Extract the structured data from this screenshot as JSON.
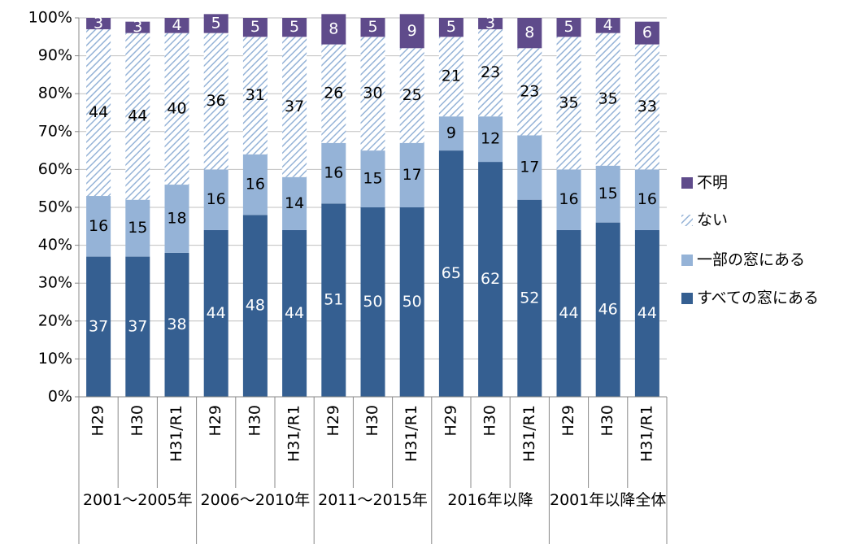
{
  "chart_data": {
    "type": "stacked_bar",
    "groups": [
      "2001〜2005年",
      "2006〜2010年",
      "2011〜2015年",
      "2016年以降",
      "2001年以降全体"
    ],
    "categories": [
      "H29",
      "H30",
      "H31/R1",
      "H29",
      "H30",
      "H31/R1",
      "H29",
      "H30",
      "H31/R1",
      "H29",
      "H30",
      "H31/R1",
      "H29",
      "H30",
      "H31/R1"
    ],
    "series": [
      {
        "name": "すべての窓にある",
        "color": "#355f91",
        "label_color": "#ffffff",
        "values": [
          37,
          37,
          38,
          44,
          48,
          44,
          51,
          50,
          50,
          65,
          62,
          52,
          44,
          46,
          44
        ]
      },
      {
        "name": "一部の窓にある",
        "color": "#95b3d7",
        "label_color": "#000000",
        "values": [
          16,
          15,
          18,
          16,
          16,
          14,
          16,
          15,
          17,
          9,
          12,
          17,
          16,
          15,
          16
        ]
      },
      {
        "name": "ない",
        "color": "#95b3d7",
        "hatch": true,
        "label_color": "#000000",
        "values": [
          44,
          44,
          40,
          36,
          31,
          37,
          26,
          30,
          25,
          21,
          23,
          23,
          35,
          35,
          33
        ]
      },
      {
        "name": "不明",
        "color": "#5f4b8b",
        "label_color": "#ffffff",
        "values": [
          3,
          3,
          4,
          5,
          5,
          5,
          8,
          5,
          9,
          5,
          3,
          8,
          5,
          4,
          6
        ]
      }
    ],
    "ylim": [
      0,
      100
    ],
    "yticks": [
      {
        "value": 0,
        "label": "0%"
      },
      {
        "value": 10,
        "label": "10%"
      },
      {
        "value": 20,
        "label": "20%"
      },
      {
        "value": 30,
        "label": "30%"
      },
      {
        "value": 40,
        "label": "40%"
      },
      {
        "value": 50,
        "label": "50%"
      },
      {
        "value": 60,
        "label": "60%"
      },
      {
        "value": 70,
        "label": "70%"
      },
      {
        "value": 80,
        "label": "80%"
      },
      {
        "value": 90,
        "label": "90%"
      },
      {
        "value": 100,
        "label": "100%"
      }
    ],
    "grid": true,
    "legend": "right"
  }
}
